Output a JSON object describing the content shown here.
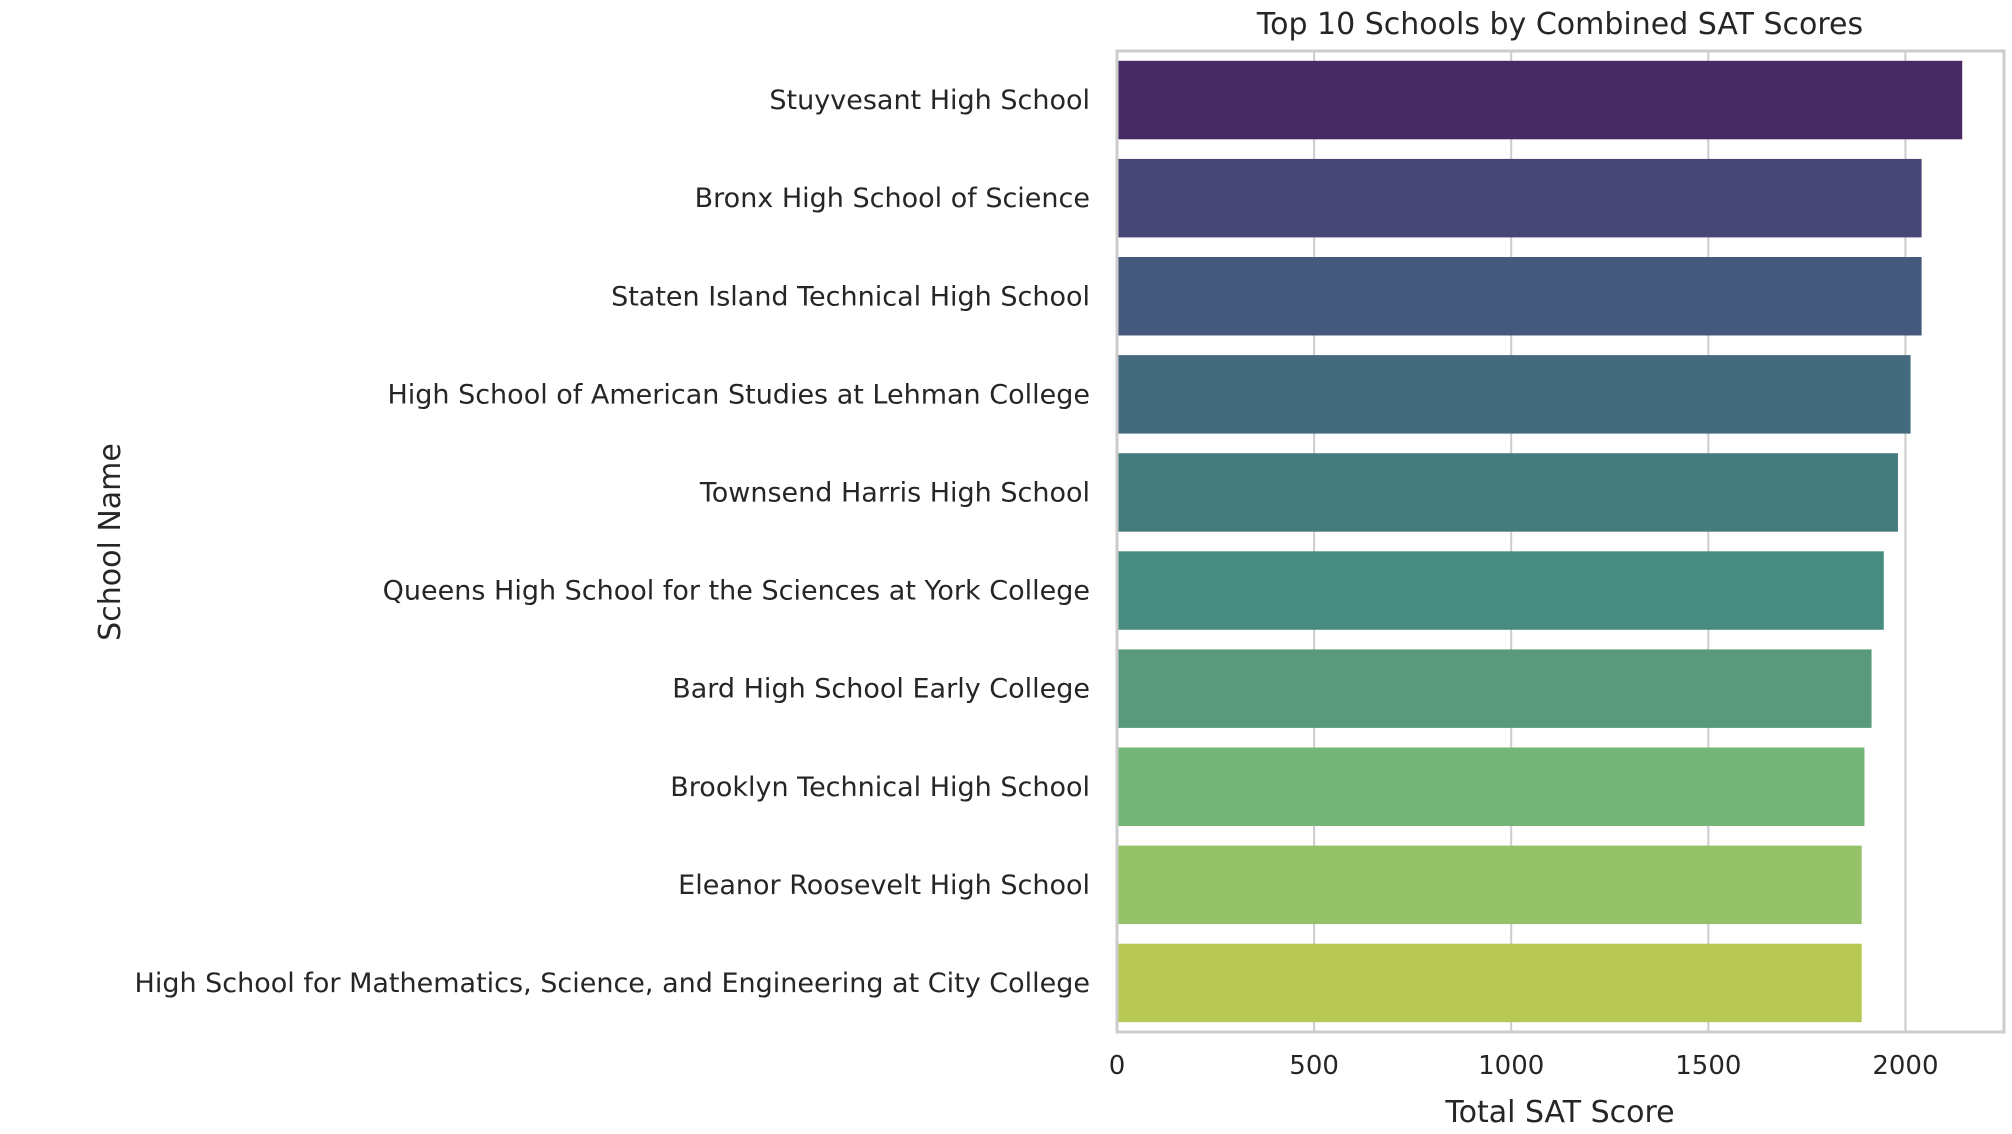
{
  "chart_data": {
    "type": "bar",
    "orientation": "horizontal",
    "title": "Top 10 Schools by Combined SAT Scores",
    "xlabel": "Total SAT Score",
    "ylabel": "School Name",
    "xlim": [
      0,
      2250
    ],
    "xticks": [
      0,
      500,
      1000,
      1500,
      2000
    ],
    "grid": true,
    "categories": [
      "Stuyvesant High School",
      "Bronx High School of Science",
      "Staten Island Technical High School",
      "High School of American Studies at Lehman College",
      "Townsend Harris High School",
      "Queens High School for the Sciences at York College",
      "Bard High School Early College",
      "Brooklyn Technical High School",
      "Eleanor Roosevelt High School",
      "High School for Mathematics, Science, and Engineering at City College"
    ],
    "values": [
      2144,
      2041,
      2041,
      2013,
      1981,
      1945,
      1914,
      1896,
      1889,
      1889
    ],
    "colors": [
      "#472963",
      "#474775",
      "#45597d",
      "#436a7d",
      "#447b7d",
      "#478c7e",
      "#589a7b",
      "#75b578",
      "#95c269",
      "#b7c954"
    ],
    "axis_color": "#cccccc",
    "grid_color": "#cccccc"
  }
}
